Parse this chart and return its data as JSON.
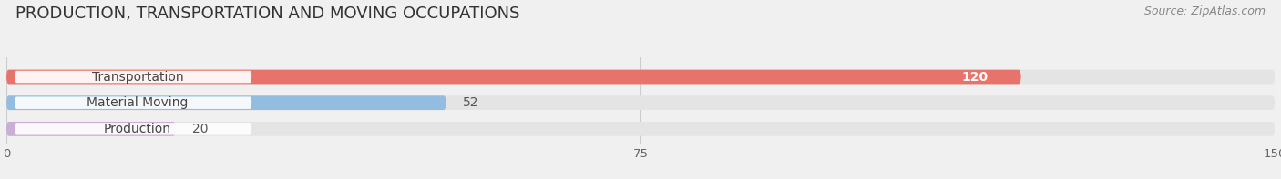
{
  "title": "PRODUCTION, TRANSPORTATION AND MOVING OCCUPATIONS",
  "source": "Source: ZipAtlas.com",
  "categories": [
    "Transportation",
    "Material Moving",
    "Production"
  ],
  "values": [
    120,
    52,
    20
  ],
  "bar_colors": [
    "#e8736b",
    "#93bde0",
    "#c9aed6"
  ],
  "value_label_colors": [
    "#e8736b",
    "#93bde0",
    "#c9aed6"
  ],
  "xlim": [
    0,
    150
  ],
  "xticks": [
    0,
    75,
    150
  ],
  "background_color": "#f0f0f0",
  "bar_background_color": "#e4e4e4",
  "title_fontsize": 13,
  "label_fontsize": 10,
  "value_fontsize": 10
}
